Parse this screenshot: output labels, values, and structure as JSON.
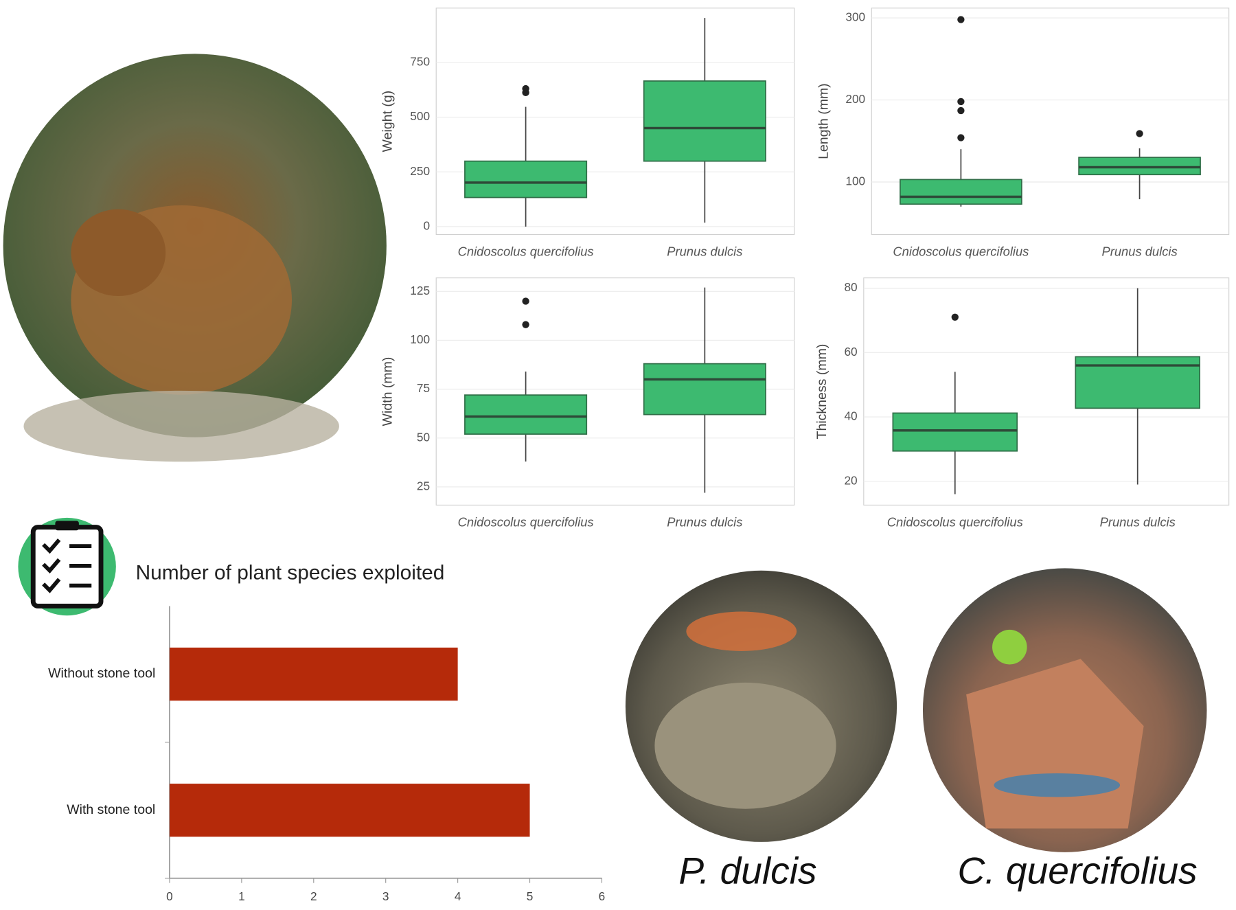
{
  "chart_data": [
    {
      "type": "box",
      "ylabel": "Weight (g)",
      "categories": [
        "Cnidoscolus quercifolius",
        "Prunus dulcis"
      ],
      "color": "#3dba70",
      "grid": true,
      "ylim": [
        -36,
        998
      ],
      "yticks": [
        0,
        250,
        500,
        750
      ],
      "boxes": [
        {
          "low": 0,
          "q1": 133,
          "median": 201,
          "q3": 299,
          "high": 547,
          "outliers": [
            612,
            630
          ]
        },
        {
          "low": 18,
          "q1": 299,
          "median": 450,
          "q3": 665,
          "high": 953,
          "outliers": []
        }
      ]
    },
    {
      "type": "box",
      "ylabel": "Length (mm)",
      "categories": [
        "Cnidoscolus quercifolius",
        "Prunus dulcis"
      ],
      "color": "#3dba70",
      "grid": true,
      "ylim": [
        36,
        312
      ],
      "yticks": [
        100,
        200,
        300
      ],
      "boxes": [
        {
          "low": 70,
          "q1": 73,
          "median": 82,
          "q3": 103,
          "high": 140,
          "outliers": [
            154,
            187,
            198,
            298
          ]
        },
        {
          "low": 79,
          "q1": 109,
          "median": 118,
          "q3": 130,
          "high": 141,
          "outliers": [
            159
          ]
        }
      ]
    },
    {
      "type": "box",
      "ylabel": "Width (mm)",
      "categories": [
        "Cnidoscolus quercifolius",
        "Prunus dulcis"
      ],
      "color": "#3dba70",
      "grid": true,
      "ylim": [
        15.7,
        131.9
      ],
      "yticks": [
        25,
        50,
        75,
        100,
        125
      ],
      "boxes": [
        {
          "low": 38,
          "q1": 52,
          "median": 61,
          "q3": 72,
          "high": 84,
          "outliers": [
            108,
            120
          ]
        },
        {
          "low": 22,
          "q1": 62,
          "median": 80,
          "q3": 88,
          "high": 127,
          "outliers": []
        }
      ]
    },
    {
      "type": "box",
      "ylabel": "Thickness (mm)",
      "categories": [
        "Cnidoscolus quercifolius",
        "Prunus dulcis"
      ],
      "color": "#3dba70",
      "grid": true,
      "ylim": [
        12.6,
        83.2
      ],
      "yticks": [
        20,
        40,
        60,
        80
      ],
      "boxes": [
        {
          "low": 16,
          "q1": 29.4,
          "median": 35.8,
          "q3": 41.2,
          "high": 54,
          "outliers": [
            71
          ]
        },
        {
          "low": 19,
          "q1": 42.7,
          "median": 56,
          "q3": 58.7,
          "high": 80,
          "outliers": []
        }
      ]
    },
    {
      "type": "hbar",
      "title": "Number of plant species exploited",
      "categories": [
        "Without stone tool",
        "With stone tool"
      ],
      "values": [
        4,
        5
      ],
      "color": "#b52a0a",
      "xlim": [
        0,
        6
      ],
      "xticks": [
        0,
        1,
        2,
        3,
        4,
        5,
        6
      ]
    }
  ],
  "captions": [
    "P. dulcis",
    "C. quercifolius"
  ]
}
